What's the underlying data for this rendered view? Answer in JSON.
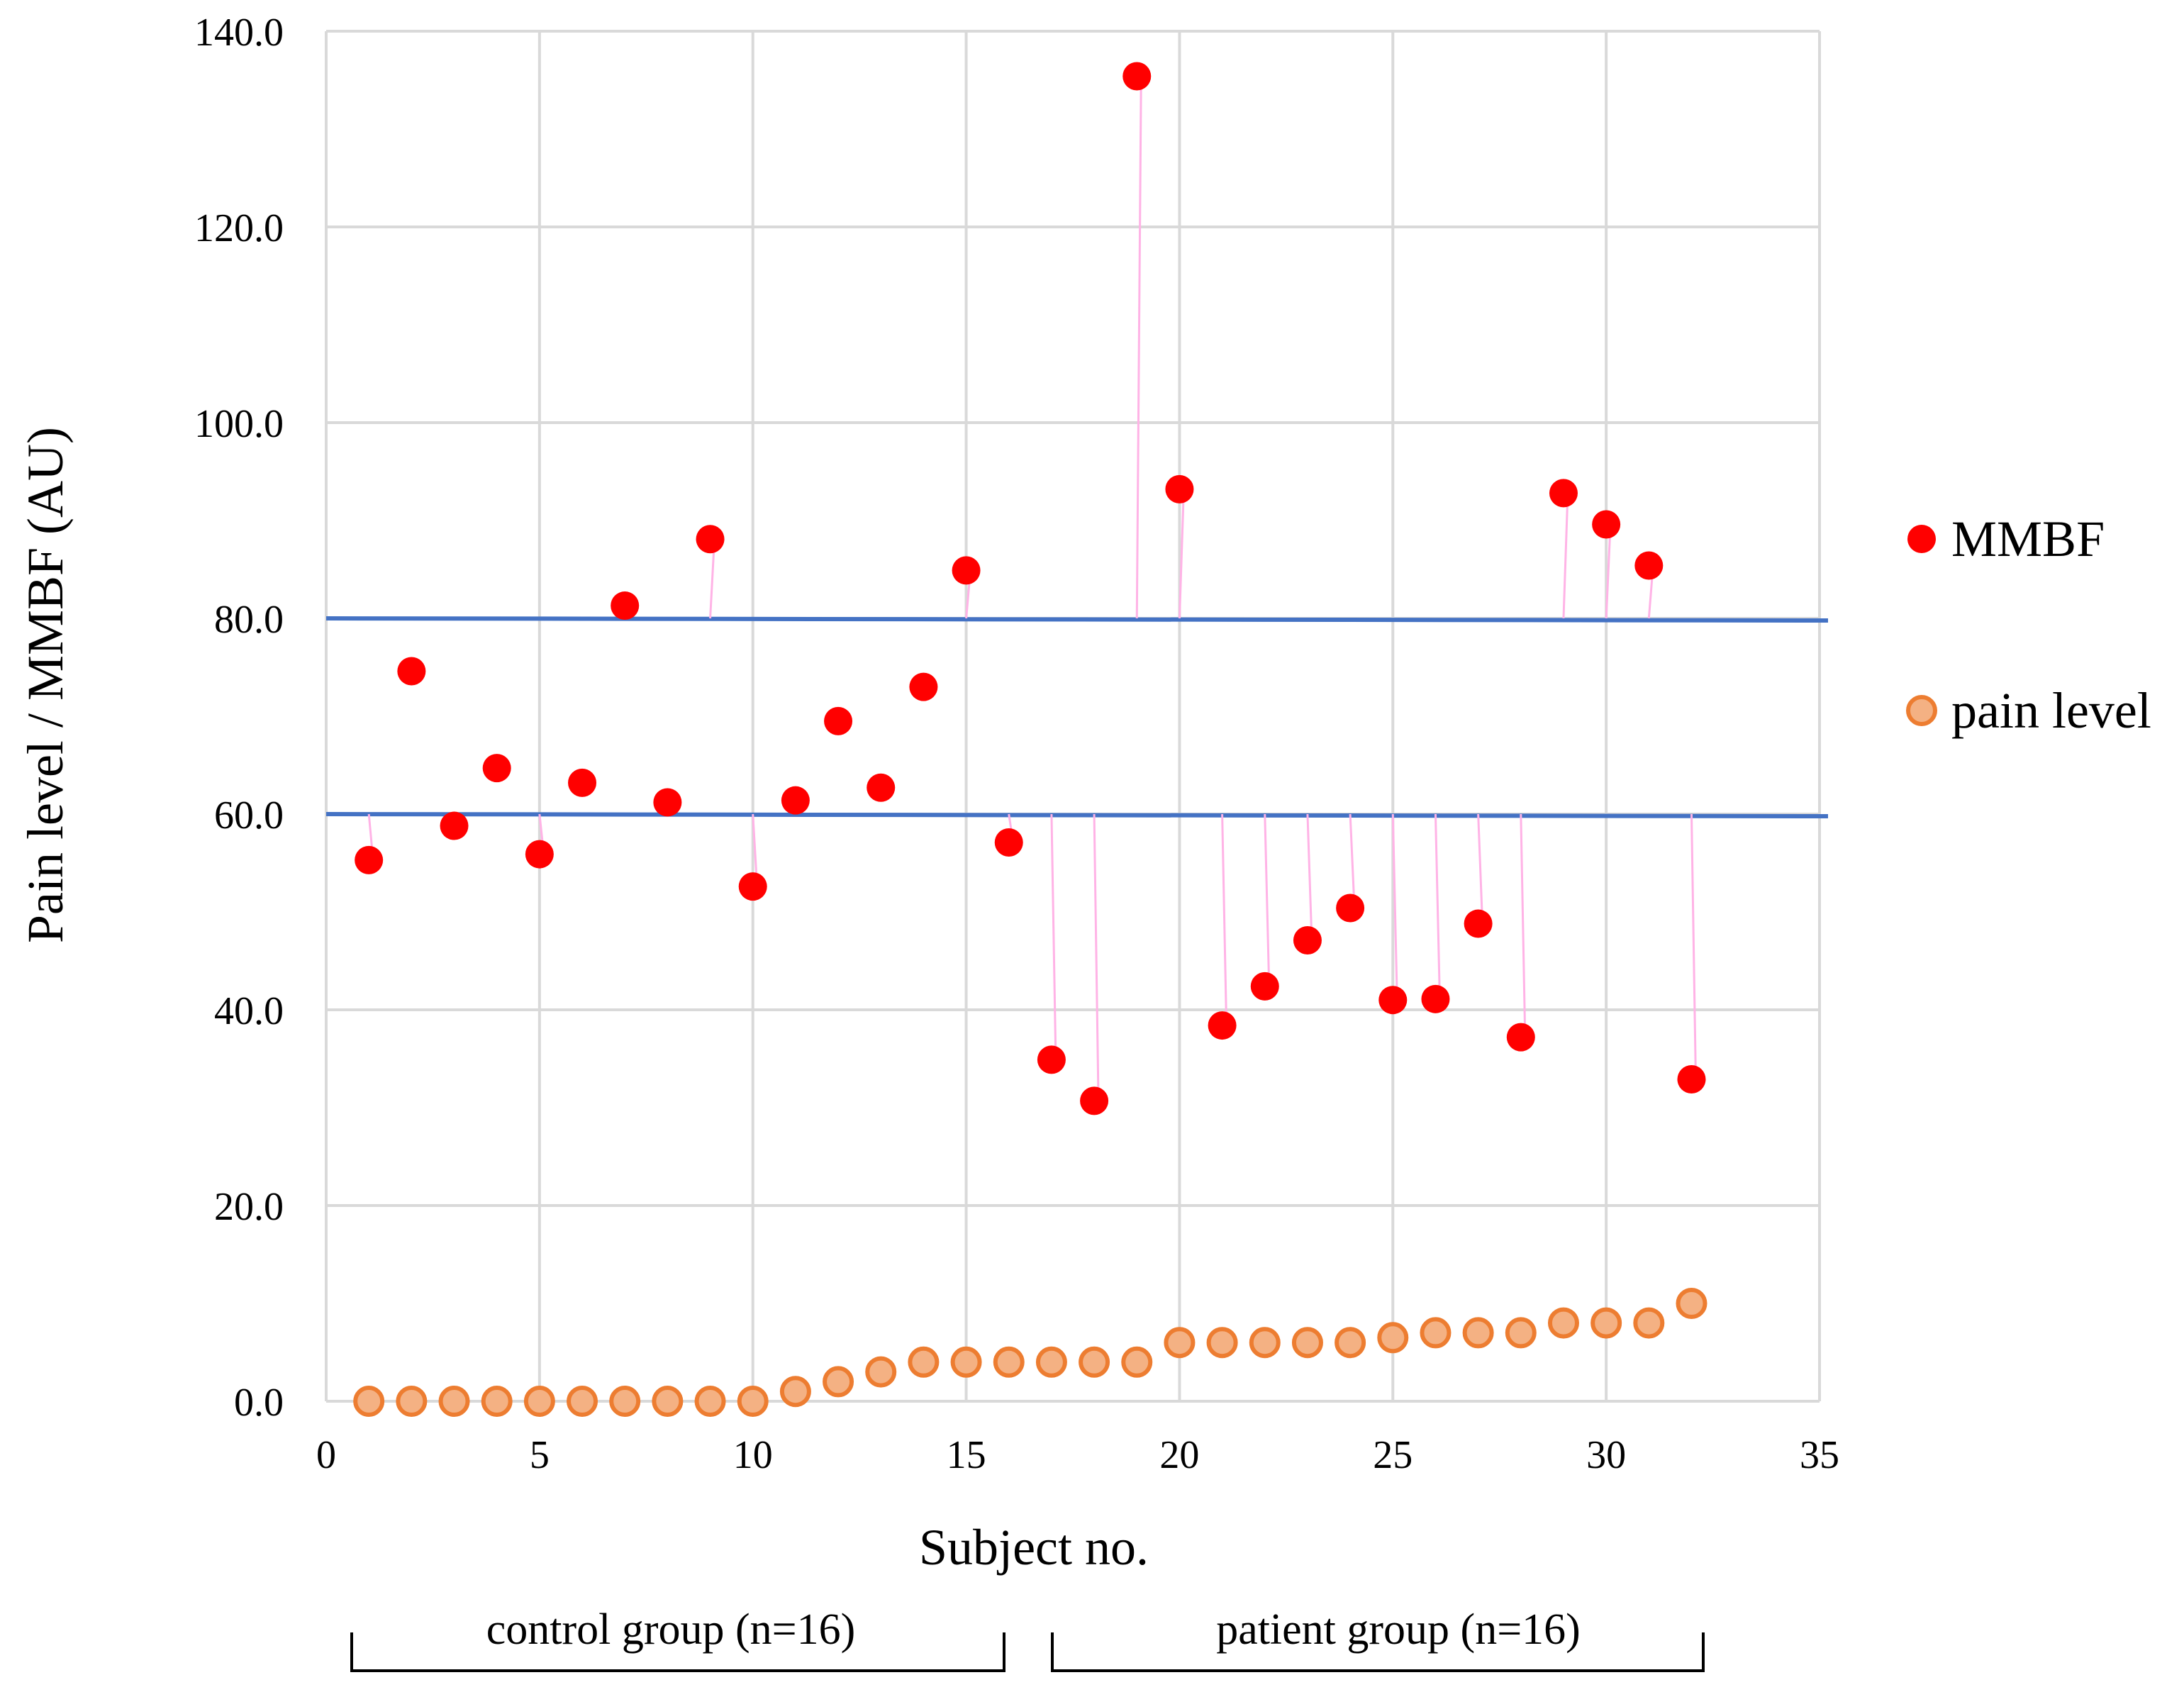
{
  "chart_data": {
    "type": "scatter",
    "xlabel": "Subject no.",
    "ylabel": "Pain level / MMBF (AU)",
    "xlim": [
      0,
      35
    ],
    "ylim": [
      0,
      140
    ],
    "x_ticks": [
      "0",
      "5",
      "10",
      "15",
      "20",
      "25",
      "30",
      "35"
    ],
    "y_ticks": [
      "0.0",
      "20.0",
      "40.0",
      "60.0",
      "80.0",
      "100.0",
      "120.0",
      "140.0"
    ],
    "grid": true,
    "legend_position": "right",
    "series": [
      {
        "name": "MMBF",
        "color": "#ff0000",
        "marker": "filled-circle",
        "x": [
          1,
          2,
          3,
          4,
          5,
          6,
          7,
          8,
          9,
          10,
          11,
          12,
          13,
          14,
          15,
          16,
          17,
          18,
          19,
          20,
          21,
          22,
          23,
          24,
          25,
          26,
          27,
          28,
          29,
          30,
          31,
          32
        ],
        "values": [
          55.3,
          74.6,
          58.8,
          64.7,
          55.9,
          63.2,
          81.3,
          61.2,
          88.1,
          52.6,
          61.4,
          69.5,
          62.7,
          73.0,
          84.9,
          57.1,
          34.9,
          30.7,
          135.4,
          93.2,
          38.4,
          42.4,
          47.1,
          50.4,
          41.0,
          41.1,
          48.8,
          37.2,
          92.8,
          89.6,
          85.4,
          32.9
        ]
      },
      {
        "name": "pain level",
        "color": "#f4b183",
        "edge_color": "#ed7d31",
        "marker": "hollow-circle",
        "x": [
          1,
          2,
          3,
          4,
          5,
          6,
          7,
          8,
          9,
          10,
          11,
          12,
          13,
          14,
          15,
          16,
          17,
          18,
          19,
          20,
          21,
          22,
          23,
          24,
          25,
          26,
          27,
          28,
          29,
          30,
          31,
          32
        ],
        "values": [
          0,
          0,
          0,
          0,
          0,
          0,
          0,
          0,
          0,
          0,
          1,
          2,
          3,
          4,
          4,
          4,
          4,
          4,
          4,
          6,
          6,
          6,
          6,
          6,
          6.5,
          7,
          7,
          7,
          8,
          8,
          8,
          10
        ]
      }
    ],
    "reference_lines": [
      {
        "name": "upper-threshold",
        "y": 80,
        "color": "#4472c4"
      },
      {
        "name": "lower-threshold",
        "y": 60,
        "color": "#4472c4"
      }
    ],
    "connector_color": "#ffb3e6",
    "group_brackets": [
      {
        "label": "control group (n=16)",
        "from_subject": 1,
        "to_subject": 16
      },
      {
        "label": "patient group (n=16)",
        "from_subject": 17,
        "to_subject": 32
      }
    ]
  }
}
